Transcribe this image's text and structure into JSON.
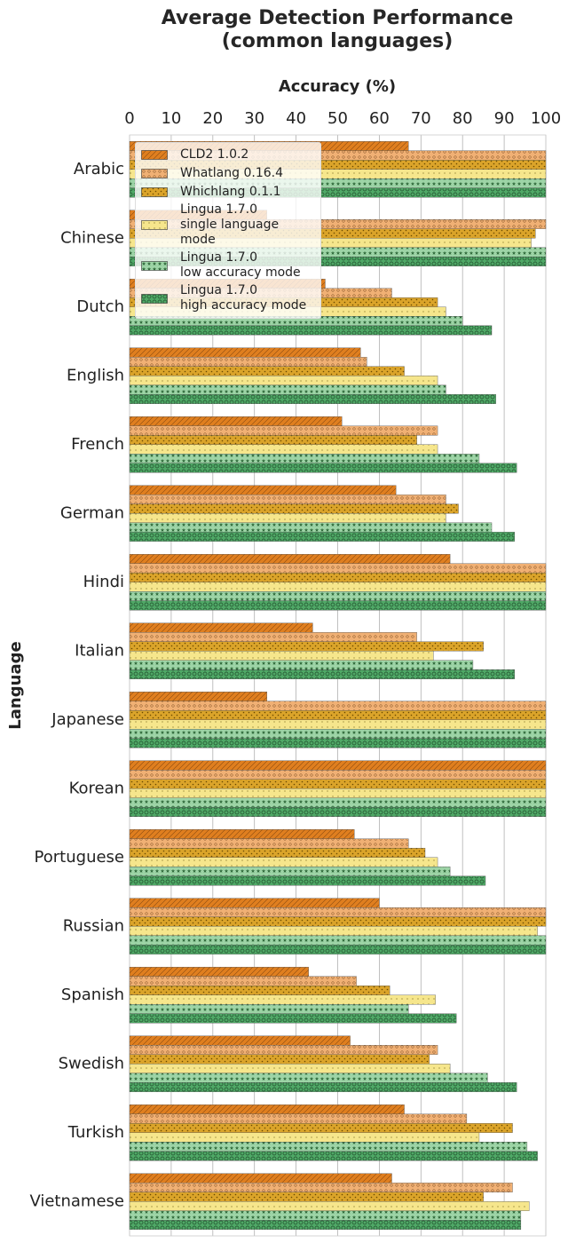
{
  "chart_data": {
    "type": "barh",
    "title": "Average Detection Performance\n(common languages)",
    "x_label": "Accuracy (%)",
    "y_label": "Language",
    "categories": [
      "Arabic",
      "Chinese",
      "Dutch",
      "English",
      "French",
      "German",
      "Hindi",
      "Italian",
      "Japanese",
      "Korean",
      "Portuguese",
      "Russian",
      "Spanish",
      "Swedish",
      "Turkish",
      "Vietnamese"
    ],
    "series": [
      {
        "name": "CLD2 1.0.2",
        "color": "#e07f1f",
        "values": [
          67,
          33,
          47,
          55.5,
          51,
          64,
          77,
          44,
          33,
          100,
          54,
          60,
          43,
          53,
          66,
          63
        ]
      },
      {
        "name": "Whatlang 0.16.4",
        "color": "#f0b074",
        "values": [
          100,
          100,
          63,
          57,
          74,
          76,
          100,
          69,
          100,
          100,
          67,
          100,
          54.5,
          74,
          81,
          92
        ]
      },
      {
        "name": "Whichlang 0.1.1",
        "color": "#dba42a",
        "values": [
          100,
          97.5,
          74,
          66,
          69,
          79,
          100,
          85,
          100,
          100,
          71,
          100,
          62.5,
          72,
          92,
          85
        ]
      },
      {
        "name": "Lingua 1.7.0\nsingle language mode",
        "color": "#f6e68c",
        "values": [
          100,
          96.5,
          76,
          74,
          74,
          76,
          100,
          73,
          100,
          100,
          74,
          98,
          73.5,
          77,
          84,
          96
        ]
      },
      {
        "name": "Lingua 1.7.0\nlow accuracy mode",
        "color": "#9dd4a6",
        "values": [
          100,
          100,
          80,
          76,
          84,
          87,
          100,
          82.5,
          100,
          100,
          77,
          100,
          67,
          86,
          95.5,
          94
        ]
      },
      {
        "name": "Lingua 1.7.0\nhigh accuracy mode",
        "color": "#4fa866",
        "values": [
          100,
          100,
          87,
          88,
          93,
          92.5,
          100,
          92.5,
          100,
          100,
          85.5,
          100,
          78.5,
          93,
          98,
          94
        ]
      }
    ],
    "xlim": [
      0,
      100
    ],
    "xticks": [
      0,
      10,
      20,
      30,
      40,
      50,
      60,
      70,
      80,
      90,
      100
    ],
    "grid": true,
    "legend": "upper left"
  }
}
